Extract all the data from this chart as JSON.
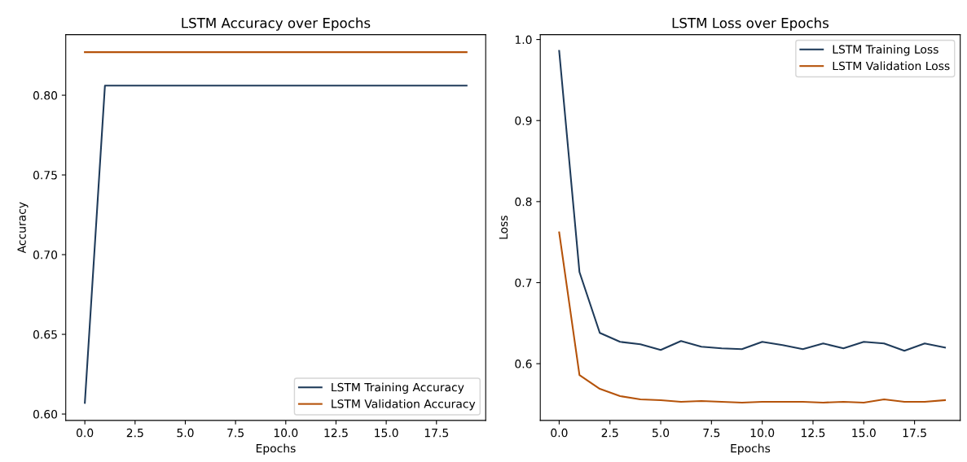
{
  "chart_data": [
    {
      "type": "line",
      "title": "LSTM Accuracy over Epochs",
      "xlabel": "Epochs",
      "ylabel": "Accuracy",
      "x": [
        0,
        1,
        2,
        3,
        4,
        5,
        6,
        7,
        8,
        9,
        10,
        11,
        12,
        13,
        14,
        15,
        16,
        17,
        18,
        19
      ],
      "series": [
        {
          "name": "LSTM Training Accuracy",
          "color": "#1f3b5a",
          "values": [
            0.607,
            0.806,
            0.806,
            0.806,
            0.806,
            0.806,
            0.806,
            0.806,
            0.806,
            0.806,
            0.806,
            0.806,
            0.806,
            0.806,
            0.806,
            0.806,
            0.806,
            0.806,
            0.806,
            0.806
          ]
        },
        {
          "name": "LSTM Validation Accuracy",
          "color": "#b5530a",
          "values": [
            0.827,
            0.827,
            0.827,
            0.827,
            0.827,
            0.827,
            0.827,
            0.827,
            0.827,
            0.827,
            0.827,
            0.827,
            0.827,
            0.827,
            0.827,
            0.827,
            0.827,
            0.827,
            0.827,
            0.827
          ]
        }
      ],
      "xlim": [
        -0.95,
        19.95
      ],
      "xticks": [
        {
          "value": 0,
          "label": "0.0"
        },
        {
          "value": 2.5,
          "label": "2.5"
        },
        {
          "value": 5,
          "label": "5.0"
        },
        {
          "value": 7.5,
          "label": "7.5"
        },
        {
          "value": 10,
          "label": "10.0"
        },
        {
          "value": 12.5,
          "label": "12.5"
        },
        {
          "value": 15,
          "label": "15.0"
        },
        {
          "value": 17.5,
          "label": "17.5"
        }
      ],
      "ylim": [
        0.596,
        0.838
      ],
      "yticks": [
        {
          "value": 0.6,
          "label": "0.60"
        },
        {
          "value": 0.65,
          "label": "0.65"
        },
        {
          "value": 0.7,
          "label": "0.70"
        },
        {
          "value": 0.75,
          "label": "0.75"
        },
        {
          "value": 0.8,
          "label": "0.80"
        }
      ],
      "legend": "bottom right",
      "grid": false,
      "marker": "none",
      "line_style": "solid"
    },
    {
      "type": "line",
      "title": "LSTM Loss over Epochs",
      "xlabel": "Epochs",
      "ylabel": "Loss",
      "x": [
        0,
        1,
        2,
        3,
        4,
        5,
        6,
        7,
        8,
        9,
        10,
        11,
        12,
        13,
        14,
        15,
        16,
        17,
        18,
        19
      ],
      "series": [
        {
          "name": "LSTM Training Loss",
          "color": "#1f3b5a",
          "values": [
            0.986,
            0.713,
            0.638,
            0.627,
            0.624,
            0.617,
            0.628,
            0.621,
            0.619,
            0.618,
            0.627,
            0.623,
            0.618,
            0.625,
            0.619,
            0.627,
            0.625,
            0.616,
            0.625,
            0.62
          ]
        },
        {
          "name": "LSTM Validation Loss",
          "color": "#b5530a",
          "values": [
            0.762,
            0.586,
            0.569,
            0.56,
            0.556,
            0.555,
            0.553,
            0.554,
            0.553,
            0.552,
            0.553,
            0.553,
            0.553,
            0.552,
            0.553,
            0.552,
            0.556,
            0.553,
            0.553,
            0.555
          ]
        }
      ],
      "xlim": [
        -0.93,
        19.75
      ],
      "xticks": [
        {
          "value": 0,
          "label": "0.0"
        },
        {
          "value": 2.5,
          "label": "2.5"
        },
        {
          "value": 5,
          "label": "5.0"
        },
        {
          "value": 7.5,
          "label": "7.5"
        },
        {
          "value": 10,
          "label": "10.0"
        },
        {
          "value": 12.5,
          "label": "12.5"
        },
        {
          "value": 15,
          "label": "15.0"
        },
        {
          "value": 17.5,
          "label": "17.5"
        }
      ],
      "ylim": [
        0.53,
        1.006
      ],
      "yticks": [
        {
          "value": 0.6,
          "label": "0.6"
        },
        {
          "value": 0.7,
          "label": "0.7"
        },
        {
          "value": 0.8,
          "label": "0.8"
        },
        {
          "value": 0.9,
          "label": "0.9"
        },
        {
          "value": 1.0,
          "label": "1.0"
        }
      ],
      "legend": "top right",
      "grid": false,
      "marker": "none",
      "line_style": "solid"
    }
  ]
}
